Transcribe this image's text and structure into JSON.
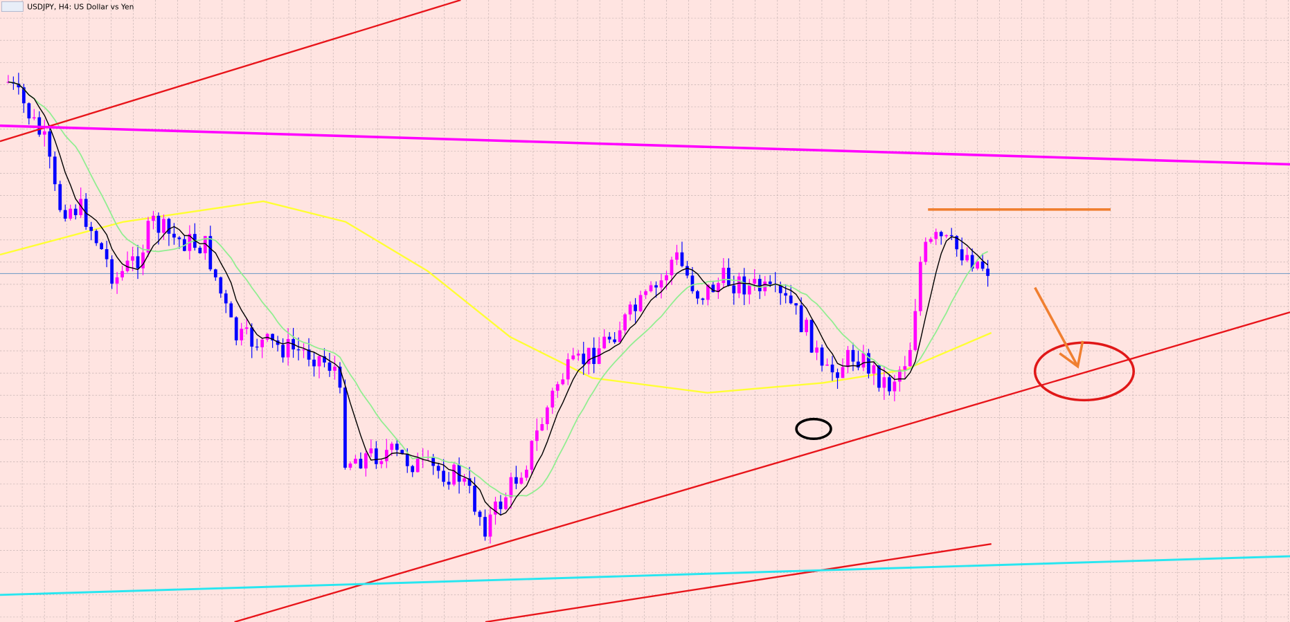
{
  "window": {
    "title": "USDJPY, H4:  US Dollar vs Yen"
  }
}
